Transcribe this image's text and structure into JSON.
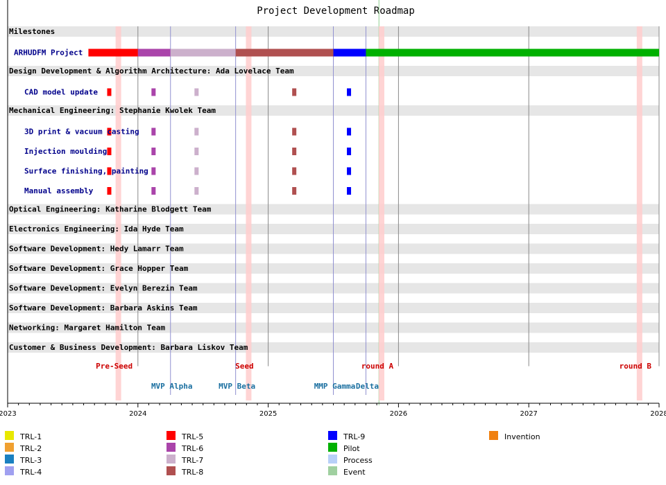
{
  "title": "Project Development Roadmap",
  "timeline": {
    "start": 2023.0,
    "end": 2028.0,
    "year_ticks": [
      2023,
      2024,
      2025,
      2026,
      2027,
      2028
    ],
    "today": 2025.85
  },
  "rows": [
    {
      "kind": "section",
      "label": "Milestones"
    },
    {
      "kind": "task",
      "label": "ARHUDFM Project",
      "color": "#0000a8",
      "bars": [
        {
          "start": 2023.62,
          "end": 2024.0,
          "color": "#ff0000"
        },
        {
          "start": 2024.0,
          "end": 2024.25,
          "color": "#aa44aa"
        },
        {
          "start": 2024.25,
          "end": 2024.75,
          "color": "#ccb0cc"
        },
        {
          "start": 2024.75,
          "end": 2025.5,
          "color": "#b05050"
        },
        {
          "start": 2025.5,
          "end": 2025.75,
          "color": "#0000ff"
        },
        {
          "start": 2025.75,
          "end": 2028.0,
          "color": "#00b000"
        }
      ]
    },
    {
      "kind": "section",
      "label": "Design Development & Algorithm Architecture: Ada Lovelace Team"
    },
    {
      "kind": "task",
      "label": "CAD model update",
      "marks": [
        {
          "t": 2023.78,
          "color": "#ff0000"
        },
        {
          "t": 2024.12,
          "color": "#aa44aa"
        },
        {
          "t": 2024.45,
          "color": "#ccb0cc"
        },
        {
          "t": 2025.2,
          "color": "#b05050"
        },
        {
          "t": 2025.62,
          "color": "#0000ff"
        }
      ]
    },
    {
      "kind": "section",
      "label": "Mechanical Engineering: Stephanie Kwolek Team"
    },
    {
      "kind": "task",
      "label": "3D print & vacuum casting",
      "marks": [
        {
          "t": 2023.78,
          "color": "#ff0000"
        },
        {
          "t": 2024.12,
          "color": "#aa44aa"
        },
        {
          "t": 2024.45,
          "color": "#ccb0cc"
        },
        {
          "t": 2025.2,
          "color": "#b05050"
        },
        {
          "t": 2025.62,
          "color": "#0000ff"
        }
      ]
    },
    {
      "kind": "task",
      "label": "Injection moulding",
      "marks": [
        {
          "t": 2023.78,
          "color": "#ff0000"
        },
        {
          "t": 2024.12,
          "color": "#aa44aa"
        },
        {
          "t": 2024.45,
          "color": "#ccb0cc"
        },
        {
          "t": 2025.2,
          "color": "#b05050"
        },
        {
          "t": 2025.62,
          "color": "#0000ff"
        }
      ]
    },
    {
      "kind": "task",
      "label": "Surface finishing, painting",
      "marks": [
        {
          "t": 2023.78,
          "color": "#ff0000"
        },
        {
          "t": 2024.12,
          "color": "#aa44aa"
        },
        {
          "t": 2024.45,
          "color": "#ccb0cc"
        },
        {
          "t": 2025.2,
          "color": "#b05050"
        },
        {
          "t": 2025.62,
          "color": "#0000ff"
        }
      ]
    },
    {
      "kind": "task",
      "label": "Manual assembly",
      "marks": [
        {
          "t": 2023.78,
          "color": "#ff0000"
        },
        {
          "t": 2024.12,
          "color": "#aa44aa"
        },
        {
          "t": 2024.45,
          "color": "#ccb0cc"
        },
        {
          "t": 2025.2,
          "color": "#b05050"
        },
        {
          "t": 2025.62,
          "color": "#0000ff"
        }
      ]
    },
    {
      "kind": "section",
      "label": "Optical Engineering: Katharine Blodgett Team"
    },
    {
      "kind": "section",
      "label": "Electronics Engineering: Ida Hyde Team"
    },
    {
      "kind": "section",
      "label": "Software Development: Hedy Lamarr Team"
    },
    {
      "kind": "section",
      "label": "Software Development: Grace Hopper Team"
    },
    {
      "kind": "section",
      "label": "Software Development: Evelyn Berezin Team"
    },
    {
      "kind": "section",
      "label": "Software Development: Barbara Askins Team"
    },
    {
      "kind": "section",
      "label": "Networking: Margaret Hamilton Team"
    },
    {
      "kind": "section",
      "label": "Customer & Business Development: Barbara Liskov Team"
    }
  ],
  "funding_events": [
    {
      "label": "Pre-Seed",
      "t": 2023.85
    },
    {
      "label": "Seed",
      "t": 2024.85
    },
    {
      "label": "round A",
      "t": 2025.87
    },
    {
      "label": "round B",
      "t": 2027.85
    }
  ],
  "mvp_events": [
    {
      "label": "MVP Alpha",
      "t": 2024.25
    },
    {
      "label": "MVP Beta",
      "t": 2024.75
    },
    {
      "label": "MMP Gamma",
      "t": 2025.5
    },
    {
      "label": "Delta",
      "t": 2025.75
    }
  ],
  "legend": [
    {
      "label": "TRL-1",
      "color": "#e8e800"
    },
    {
      "label": "TRL-2",
      "color": "#f0a030"
    },
    {
      "label": "TRL-3",
      "color": "#1a80c0"
    },
    {
      "label": "TRL-4",
      "color": "#a0a0f0"
    },
    {
      "label": "TRL-5",
      "color": "#ff0000"
    },
    {
      "label": "TRL-6",
      "color": "#aa44aa"
    },
    {
      "label": "TRL-7",
      "color": "#ccb0cc"
    },
    {
      "label": "TRL-8",
      "color": "#b05050"
    },
    {
      "label": "TRL-9",
      "color": "#0000ff"
    },
    {
      "label": "Pilot",
      "color": "#00b000"
    },
    {
      "label": "Process",
      "color": "#b8d0f8"
    },
    {
      "label": "Event",
      "color": "#a0d0a0"
    },
    {
      "label": "Invention",
      "color": "#f08010"
    }
  ]
}
